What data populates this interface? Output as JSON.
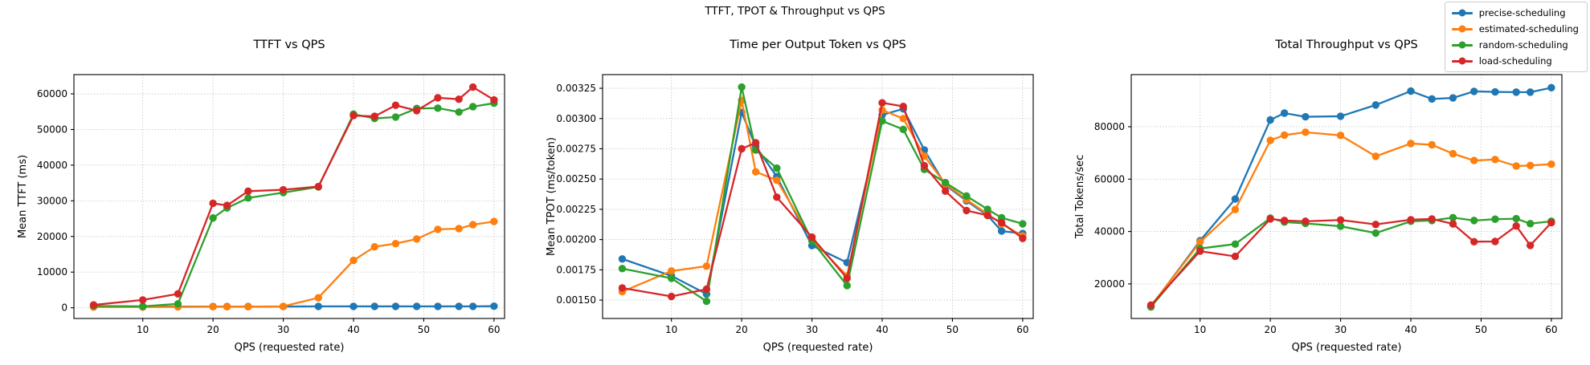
{
  "figure": {
    "title": "TTFT, TPOT & Throughput vs QPS"
  },
  "legend": {
    "position": "top-right",
    "items": [
      {
        "label": "precise-scheduling",
        "color": "#1f77b4"
      },
      {
        "label": "estimated-scheduling",
        "color": "#ff7f0e"
      },
      {
        "label": "random-scheduling",
        "color": "#2ca02c"
      },
      {
        "label": "load-scheduling",
        "color": "#d62728"
      }
    ]
  },
  "chart_data": [
    {
      "type": "line",
      "title": "TTFT vs QPS",
      "xlabel": "QPS (requested rate)",
      "ylabel": "Mean TTFT (ms)",
      "grid": true,
      "x": [
        3,
        10,
        15,
        20,
        22,
        25,
        30,
        35,
        40,
        43,
        46,
        49,
        52,
        55,
        57,
        60
      ],
      "xticks": [
        10,
        20,
        30,
        40,
        50,
        60
      ],
      "xlim": [
        0.2,
        61.5
      ],
      "yticks": [
        0,
        10000,
        20000,
        30000,
        40000,
        50000,
        60000
      ],
      "ylim": [
        -3000,
        65400
      ],
      "ytick_decimals": 0,
      "series": [
        {
          "name": "precise-scheduling",
          "color": "#1f77b4",
          "values": [
            400,
            350,
            350,
            350,
            350,
            350,
            350,
            400,
            400,
            400,
            400,
            400,
            400,
            400,
            400,
            450
          ]
        },
        {
          "name": "estimated-scheduling",
          "color": "#ff7f0e",
          "values": [
            200,
            200,
            250,
            300,
            300,
            300,
            400,
            2800,
            13300,
            17100,
            18000,
            19300,
            22000,
            22200,
            23300,
            24200
          ]
        },
        {
          "name": "random-scheduling",
          "color": "#2ca02c",
          "values": [
            500,
            400,
            1100,
            25200,
            28000,
            30800,
            32300,
            33900,
            54300,
            53100,
            53500,
            55900,
            56000,
            54900,
            56400,
            57400
          ]
        },
        {
          "name": "load-scheduling",
          "color": "#d62728",
          "values": [
            800,
            2200,
            3900,
            29300,
            28700,
            32700,
            33100,
            34000,
            53900,
            53700,
            56800,
            55300,
            58900,
            58500,
            61900,
            58300
          ]
        }
      ]
    },
    {
      "type": "line",
      "title": "Time per Output Token vs QPS",
      "xlabel": "QPS (requested rate)",
      "ylabel": "Mean TPOT (ms/token)",
      "grid": true,
      "x": [
        3,
        10,
        15,
        20,
        22,
        25,
        30,
        35,
        40,
        43,
        46,
        49,
        52,
        55,
        57,
        60
      ],
      "xticks": [
        10,
        20,
        30,
        40,
        50,
        60
      ],
      "xlim": [
        0.2,
        61.5
      ],
      "yticks": [
        0.0015,
        0.00175,
        0.002,
        0.00225,
        0.0025,
        0.00275,
        0.003,
        0.00325
      ],
      "ylim": [
        0.001348,
        0.003363
      ],
      "ytick_decimals": 5,
      "series": [
        {
          "name": "precise-scheduling",
          "color": "#1f77b4",
          "values": [
            0.00184,
            0.0017,
            0.00155,
            0.00305,
            0.00277,
            0.00252,
            0.00195,
            0.00181,
            0.00303,
            0.00308,
            0.00274,
            0.00245,
            0.00232,
            0.0022,
            0.00207,
            0.00205
          ]
        },
        {
          "name": "estimated-scheduling",
          "color": "#ff7f0e",
          "values": [
            0.00157,
            0.00174,
            0.00178,
            0.00315,
            0.00256,
            0.00249,
            0.002,
            0.0017,
            0.00307,
            0.003,
            0.00269,
            0.00246,
            0.00233,
            0.00221,
            0.00213,
            0.00203
          ]
        },
        {
          "name": "random-scheduling",
          "color": "#2ca02c",
          "values": [
            0.00176,
            0.00168,
            0.00149,
            0.00326,
            0.00274,
            0.00259,
            0.00199,
            0.00162,
            0.00298,
            0.00291,
            0.00258,
            0.00247,
            0.00236,
            0.00225,
            0.00218,
            0.00213
          ]
        },
        {
          "name": "load-scheduling",
          "color": "#d62728",
          "values": [
            0.0016,
            0.00153,
            0.00159,
            0.00275,
            0.0028,
            0.00235,
            0.00202,
            0.00168,
            0.00313,
            0.0031,
            0.00261,
            0.0024,
            0.00224,
            0.0022,
            0.00214,
            0.00201
          ]
        }
      ]
    },
    {
      "type": "line",
      "title": "Total Throughput vs QPS",
      "xlabel": "QPS (requested rate)",
      "ylabel": "Total Tokens/sec",
      "grid": true,
      "x": [
        3,
        10,
        15,
        20,
        22,
        25,
        30,
        35,
        40,
        43,
        46,
        49,
        52,
        55,
        57,
        60
      ],
      "xticks": [
        10,
        20,
        30,
        40,
        50,
        60
      ],
      "xlim": [
        0.2,
        61.5
      ],
      "yticks": [
        20000,
        40000,
        60000,
        80000
      ],
      "ylim": [
        6800,
        99900
      ],
      "ytick_decimals": 0,
      "series": [
        {
          "name": "precise-scheduling",
          "color": "#1f77b4",
          "values": [
            11300,
            36500,
            52400,
            82600,
            85200,
            83800,
            84000,
            88300,
            93600,
            90600,
            91000,
            93500,
            93300,
            93200,
            93200,
            94900
          ]
        },
        {
          "name": "estimated-scheduling",
          "color": "#ff7f0e",
          "values": [
            11500,
            36000,
            48400,
            74800,
            76800,
            77900,
            76700,
            68700,
            73600,
            73100,
            69700,
            67100,
            67500,
            65000,
            65200,
            65700
          ]
        },
        {
          "name": "random-scheduling",
          "color": "#2ca02c",
          "values": [
            11200,
            33500,
            35200,
            45100,
            43600,
            43100,
            42000,
            39400,
            43900,
            44200,
            45300,
            44200,
            44700,
            44900,
            43000,
            43900
          ]
        },
        {
          "name": "load-scheduling",
          "color": "#d62728",
          "values": [
            11900,
            32500,
            30500,
            44800,
            44200,
            43900,
            44400,
            42700,
            44500,
            44800,
            42900,
            36100,
            36200,
            42100,
            34700,
            43400
          ]
        }
      ]
    }
  ]
}
